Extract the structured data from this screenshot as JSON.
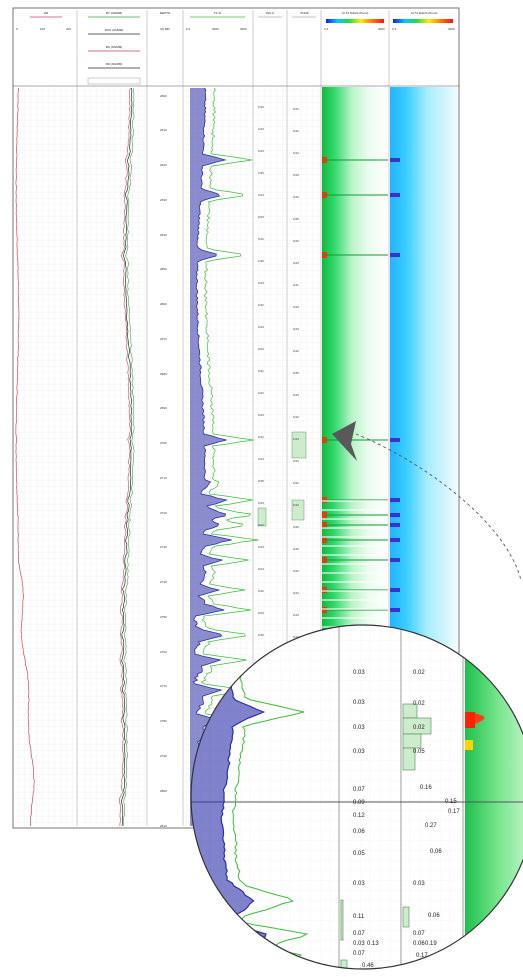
{
  "header": {
    "track1_title": "GR",
    "track1_scale": [
      "0",
      "100",
      "200"
    ],
    "track2_title": "RT (OHMM)",
    "track2_rows": [
      "RXO (OHMM)",
      "RS (OHMM)",
      "RD (OHMM)"
    ],
    "depth_title": "DEPTH",
    "depth_unit": "(ft) MD",
    "track4_title": "T2 ¹H",
    "track4_scale": [
      "0.3",
      "3000",
      "3000"
    ],
    "track5_title": "PHI-A",
    "track6_title": "PHI-B",
    "track7_title": "¹H T2 Distrib (Perm)",
    "track7_scale": [
      "0.3",
      "",
      "3000"
    ],
    "track8_title": "¹H T2 Distrib (Perm)",
    "track8_scale": [
      "0.3",
      "",
      "3000"
    ]
  },
  "depth_labels": [
    "2600",
    "2610",
    "2620",
    "2630",
    "2640",
    "2650",
    "2660",
    "2670",
    "2680",
    "2690",
    "2700",
    "2710",
    "2720",
    "2730",
    "2740",
    "2750",
    "2760",
    "2770",
    "2780",
    "2790",
    "2800",
    "2810"
  ],
  "small_values_a": [
    "0.02",
    "0.03",
    "0.03",
    "0.05",
    "0.04",
    "0.03",
    "0.02",
    "0.05",
    "0.03",
    "0.02",
    "0.04",
    "0.03",
    "0.01",
    "0.02",
    "0.03",
    "0.02",
    "0.04",
    "0.05",
    "0.03",
    "0.02",
    "0.03",
    "0.04",
    "0.02",
    "0.03",
    "0.05"
  ],
  "small_values_b": [
    "0.01",
    "0.02",
    "0.04",
    "0.03",
    "0.02",
    "0.05",
    "0.02",
    "0.03",
    "0.01",
    "0.04",
    "0.03",
    "0.02",
    "0.05",
    "0.03",
    "0.02",
    "0.04",
    "0.03",
    "0.01",
    "0.02",
    "0.05",
    "0.03",
    "0.02",
    "0.04",
    "0.03",
    "0.02"
  ],
  "zoom": {
    "col_a": [
      "0.03",
      "0.03",
      "0.03",
      "0.03",
      "0.07",
      "0.09",
      "0.12",
      "0.06",
      "0.05",
      "0.03",
      "0.11",
      "0.07",
      "0.03",
      "0.07",
      "0.46"
    ],
    "col_a_side": [
      "0.13"
    ],
    "col_b": [
      "0.02",
      "0.02",
      "0.02",
      "0.05",
      "0.16",
      "0.15",
      "0.17",
      "0.27",
      "0.06",
      "0.03",
      "0.06",
      "0.07",
      "0.06",
      "0.17"
    ],
    "col_b_side": [
      "0.19"
    ]
  },
  "colors": {
    "gr": "#d24660",
    "rt": "#2c2c2c",
    "rxo": "#3aa64a",
    "rs": "#c0455a",
    "t2": "#2b2fa8",
    "t2b": "#3bbf3b",
    "pointer": "#555555"
  }
}
